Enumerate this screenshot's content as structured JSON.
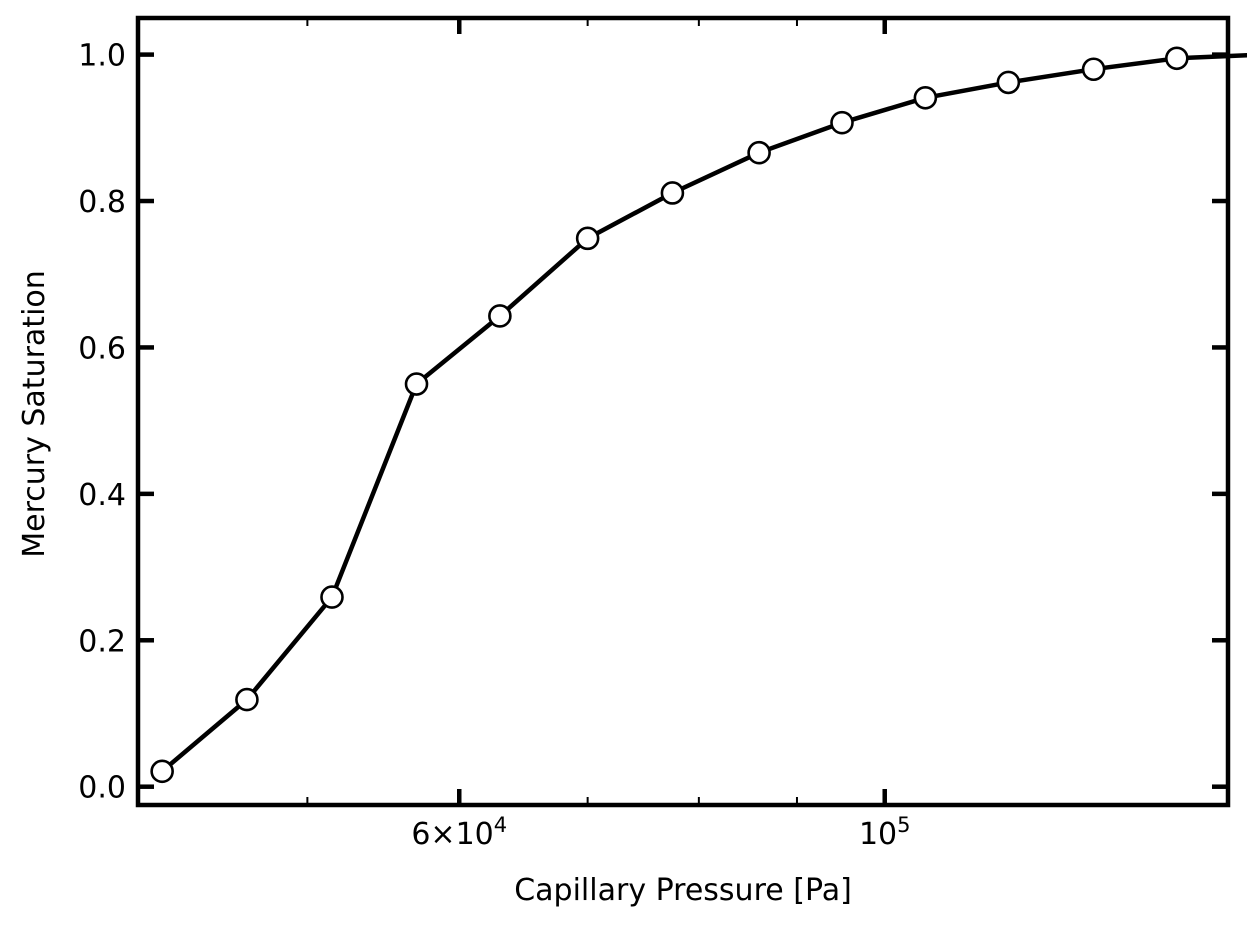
{
  "chart_data": {
    "type": "line",
    "title": "",
    "xlabel": "Capillary Pressure [Pa]",
    "ylabel": "Mercury Saturation",
    "xscale": "log",
    "xlim": [
      40800,
      151000
    ],
    "ylim": [
      -0.025,
      1.05
    ],
    "grid": false,
    "series": [
      {
        "line_color": "#000000",
        "marker": "circle",
        "marker_fill": "#ffffff",
        "marker_edge": "#000000",
        "x": [
          42000,
          46500,
          51500,
          57000,
          63000,
          70000,
          77500,
          86000,
          95000,
          105000,
          116000,
          128500,
          142000,
          157500
        ],
        "y": [
          0.021,
          0.119,
          0.259,
          0.55,
          0.643,
          0.749,
          0.811,
          0.866,
          0.907,
          0.941,
          0.962,
          0.98,
          0.995,
          1.0
        ]
      }
    ],
    "yticks": [
      {
        "value": 0.0,
        "label": "0.0"
      },
      {
        "value": 0.2,
        "label": "0.2"
      },
      {
        "value": 0.4,
        "label": "0.4"
      },
      {
        "value": 0.6,
        "label": "0.6"
      },
      {
        "value": 0.8,
        "label": "0.8"
      },
      {
        "value": 1.0,
        "label": "1.0"
      }
    ],
    "xticks_major": [
      {
        "value": 60000,
        "label_base": "6×10",
        "label_exp": "4"
      },
      {
        "value": 100000,
        "label_base": "10",
        "label_exp": "5"
      }
    ],
    "xticks_minor": [
      50000,
      70000,
      80000,
      90000
    ]
  }
}
